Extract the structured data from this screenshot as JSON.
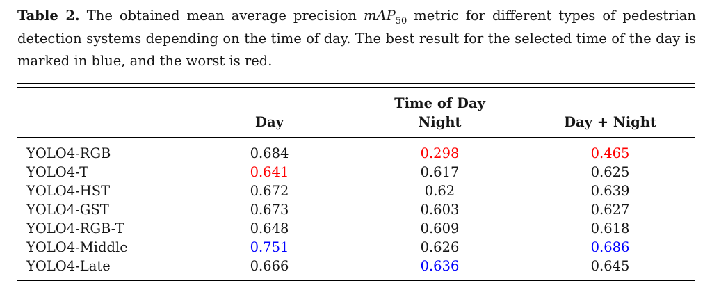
{
  "caption": {
    "label": "Table 2.",
    "text_before_math": " The obtained mean average precision ",
    "math_base": "mAP",
    "math_sub": "50",
    "text_after_math": " metric for different types of pedestrian detection systems depending on the time of day. The best result for the selected time of the day is marked in blue, and the worst is red."
  },
  "table": {
    "group_header": "Time of Day",
    "columns": [
      "Day",
      "Night",
      "Day + Night"
    ],
    "rows": [
      {
        "label": "YOLO4-RGB",
        "values": [
          "0.684",
          "0.298",
          "0.465"
        ],
        "colors": [
          "black",
          "red",
          "red"
        ]
      },
      {
        "label": "YOLO4-T",
        "values": [
          "0.641",
          "0.617",
          "0.625"
        ],
        "colors": [
          "red",
          "black",
          "black"
        ]
      },
      {
        "label": "YOLO4-HST",
        "values": [
          "0.672",
          "0.62",
          "0.639"
        ],
        "colors": [
          "black",
          "black",
          "black"
        ]
      },
      {
        "label": "YOLO4-GST",
        "values": [
          "0.673",
          "0.603",
          "0.627"
        ],
        "colors": [
          "black",
          "black",
          "black"
        ]
      },
      {
        "label": "YOLO4-RGB-T",
        "values": [
          "0.648",
          "0.609",
          "0.618"
        ],
        "colors": [
          "black",
          "black",
          "black"
        ]
      },
      {
        "label": "YOLO4-Middle",
        "values": [
          "0.751",
          "0.626",
          "0.686"
        ],
        "colors": [
          "blue",
          "black",
          "blue"
        ]
      },
      {
        "label": "YOLO4-Late",
        "values": [
          "0.666",
          "0.636",
          "0.645"
        ],
        "colors": [
          "black",
          "blue",
          "black"
        ]
      }
    ]
  },
  "colors": {
    "best_blue": "#0000ff",
    "worst_red": "#ff0000",
    "text": "#161616",
    "background": "#ffffff"
  }
}
